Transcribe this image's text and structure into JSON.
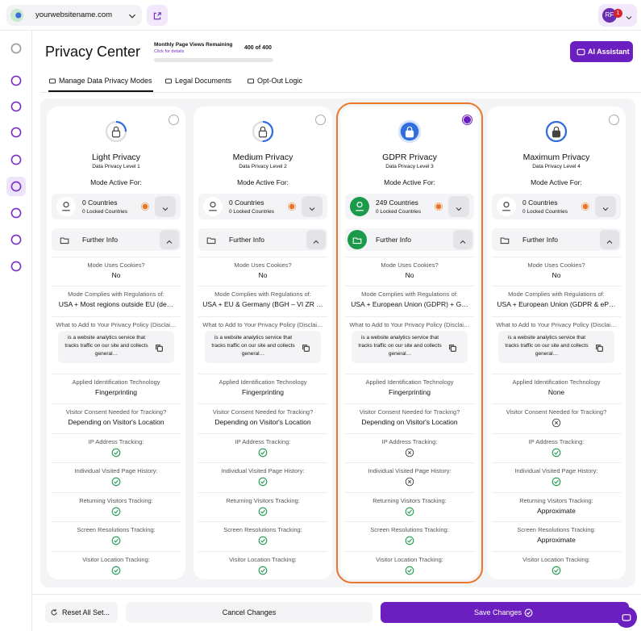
{
  "topbar": {
    "site": "yourwebsitename.com",
    "avatar": "RF",
    "badge": "1"
  },
  "header": {
    "title": "Privacy Center",
    "views_label": "Monthly Page Views Remaining",
    "views_link": "Click for details",
    "views_count": "400 of 400",
    "assistant": "AI Assistant"
  },
  "tabs": [
    "Manage Data Privacy Modes",
    "Legal Documents",
    "Opt-Out Logic"
  ],
  "cards": [
    {
      "title": "Light Privacy",
      "subtitle": "Data Privacy Level 1",
      "mode_label": "Mode Active For:",
      "countries": "0 Countries",
      "locked": "0 Locked Countries",
      "further": "Further Info",
      "selected": false,
      "rows": [
        {
          "label": "Mode Uses Cookies?",
          "value": "No"
        },
        {
          "label": "Mode Complies with Regulations of:",
          "value": "USA + Most regions outside EU (de…"
        },
        {
          "label": "What to Add to Your Privacy Policy (Disclai…",
          "snippet": "is a website analytics service that tracks traffic on our site and collects general…"
        },
        {
          "label": "Applied Identification Technology",
          "value": "Fingerprinting"
        },
        {
          "label": "Visitor Consent Needed for Tracking?",
          "value": "Depending on Visitor's Location"
        },
        {
          "label": "IP Address Tracking:",
          "value": true
        },
        {
          "label": "Individual Visited Page History:",
          "value": true
        },
        {
          "label": "Returning Visitors Tracking:",
          "value": true
        },
        {
          "label": "Screen Resolutions Tracking:",
          "value": true
        },
        {
          "label": "Visitor Location Tracking:",
          "value": true
        }
      ]
    },
    {
      "title": "Medium Privacy",
      "subtitle": "Data Privacy Level 2",
      "mode_label": "Mode Active For:",
      "countries": "0 Countries",
      "locked": "0 Locked Countries",
      "further": "Further Info",
      "selected": false,
      "rows": [
        {
          "label": "Mode Uses Cookies?",
          "value": "No"
        },
        {
          "label": "Mode Complies with Regulations of:",
          "value": "USA + EU & Germany (BGH – VI ZR …"
        },
        {
          "label": "What to Add to Your Privacy Policy (Disclai…",
          "snippet": "is a website analytics service that tracks traffic on our site and collects general…"
        },
        {
          "label": "Applied Identification Technology",
          "value": "Fingerprinting"
        },
        {
          "label": "Visitor Consent Needed for Tracking?",
          "value": "Depending on Visitor's Location"
        },
        {
          "label": "IP Address Tracking:",
          "value": true
        },
        {
          "label": "Individual Visited Page History:",
          "value": true
        },
        {
          "label": "Returning Visitors Tracking:",
          "value": true
        },
        {
          "label": "Screen Resolutions Tracking:",
          "value": true
        },
        {
          "label": "Visitor Location Tracking:",
          "value": true
        }
      ]
    },
    {
      "title": "GDPR Privacy",
      "subtitle": "Data Privacy Level 3",
      "mode_label": "Mode Active For:",
      "countries": "249 Countries",
      "locked": "0 Locked Countries",
      "further": "Further Info",
      "selected": true,
      "rows": [
        {
          "label": "Mode Uses Cookies?",
          "value": "No"
        },
        {
          "label": "Mode Complies with Regulations of:",
          "value": "USA + European Union (GDPR) + G…"
        },
        {
          "label": "What to Add to Your Privacy Policy (Disclai…",
          "snippet": "is a website analytics service that tracks traffic on our site and collects general…"
        },
        {
          "label": "Applied Identification Technology",
          "value": "Fingerprinting"
        },
        {
          "label": "Visitor Consent Needed for Tracking?",
          "value": "Depending on Visitor's Location"
        },
        {
          "label": "IP Address Tracking:",
          "value": false
        },
        {
          "label": "Individual Visited Page History:",
          "value": false
        },
        {
          "label": "Returning Visitors Tracking:",
          "value": true
        },
        {
          "label": "Screen Resolutions Tracking:",
          "value": true
        },
        {
          "label": "Visitor Location Tracking:",
          "value": true
        }
      ]
    },
    {
      "title": "Maximum Privacy",
      "subtitle": "Data Privacy Level 4",
      "mode_label": "Mode Active For:",
      "countries": "0 Countries",
      "locked": "0 Locked Countries",
      "further": "Further Info",
      "selected": false,
      "rows": [
        {
          "label": "Mode Uses Cookies?",
          "value": "No"
        },
        {
          "label": "Mode Complies with Regulations of:",
          "value": "USA + European Union (GDPR & eP…"
        },
        {
          "label": "What to Add to Your Privacy Policy (Disclai…",
          "snippet": "is a website analytics service that tracks traffic on our site and collects general…"
        },
        {
          "label": "Applied Identification Technology",
          "value": "None"
        },
        {
          "label": "Visitor Consent Needed for Tracking?",
          "value": false
        },
        {
          "label": "IP Address Tracking:",
          "value": true
        },
        {
          "label": "Individual Visited Page History:",
          "value": true
        },
        {
          "label": "Returning Visitors Tracking:",
          "value": "Approximate"
        },
        {
          "label": "Screen Resolutions Tracking:",
          "value": "Approximate"
        },
        {
          "label": "Visitor Location Tracking:",
          "value": true
        }
      ]
    }
  ],
  "footer": {
    "reset": "Reset All Set...",
    "cancel": "Cancel Changes",
    "save": "Save Changes"
  }
}
